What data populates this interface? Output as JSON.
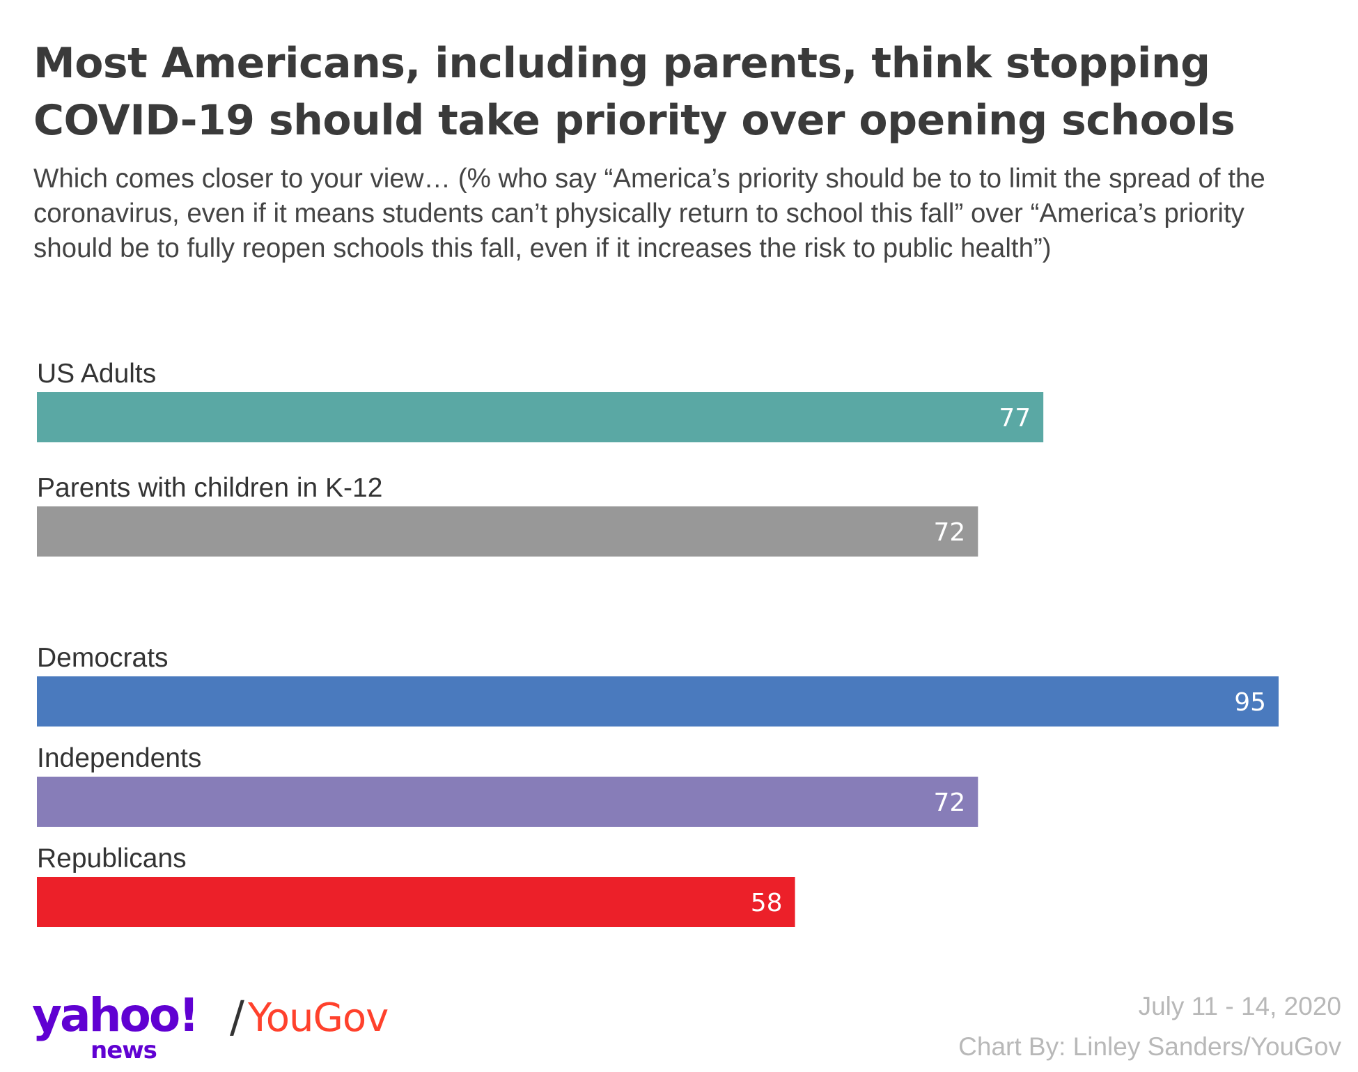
{
  "chart_data": {
    "type": "bar",
    "orientation": "horizontal",
    "title": "Most Americans, including parents, think stopping COVID-19 should take priority over opening schools",
    "subtitle": "Which comes closer to your view… (% who say “America’s priority should be to to limit the spread of the coronavirus, even if it means students can’t physically return to school this fall” over “America’s priority should be to fully reopen schools this fall, even if it increases the risk to public health”)",
    "categories": [
      "US Adults",
      "Parents with children in K-12",
      "Democrats",
      "Independents",
      "Republicans"
    ],
    "values": [
      77,
      72,
      95,
      72,
      58
    ],
    "colors": [
      "#5aa8a4",
      "#989898",
      "#4a7abe",
      "#877db8",
      "#ec2029"
    ],
    "groups": [
      [
        "US Adults",
        "Parents with children in K-12"
      ],
      [
        "Democrats",
        "Independents",
        "Republicans"
      ]
    ],
    "xlim": [
      0,
      95
    ],
    "grid": false,
    "legend": "none",
    "data_labels": true
  },
  "footer": {
    "logo_yahoo": "yahoo!",
    "logo_news": "news",
    "logo_slash": "/",
    "logo_yougov": "YouGov",
    "date": "July 11 - 14, 2020",
    "byline": "Chart By: Linley Sanders/YouGov"
  }
}
